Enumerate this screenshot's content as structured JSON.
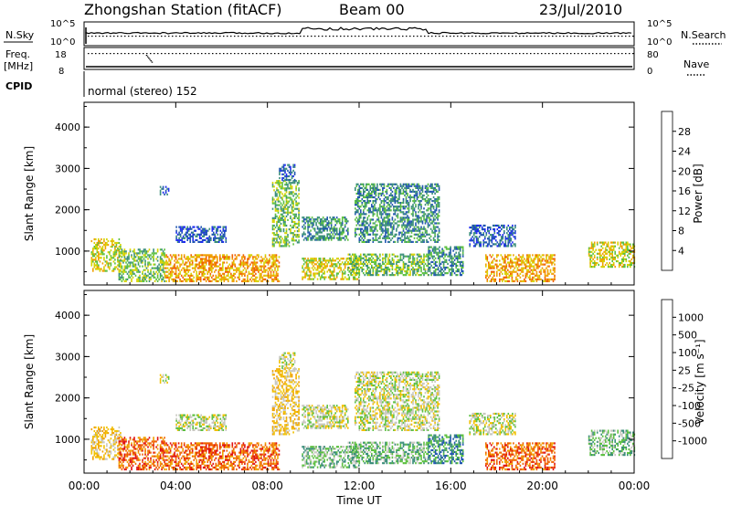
{
  "header": {
    "station": "Zhongshan Station (fitACF)",
    "beam": "Beam 00",
    "date": "23/Jul/2010"
  },
  "status_panels": {
    "nsky_label": "N.Sky",
    "nsearch_label": "N.Search",
    "nsky_ticks": [
      "10^5",
      "10^0"
    ],
    "nsearch_ticks": [
      "10^5",
      "10^0"
    ],
    "freq_label": "Freq.",
    "freq_unit": "[MHz]",
    "freq_ticks": [
      "18",
      "8"
    ],
    "nave_label": "Nave",
    "nave_ticks": [
      "80",
      "0"
    ],
    "cpid_label": "CPID",
    "cpid_value": "normal (stereo) 152"
  },
  "chart_data": [
    {
      "type": "heatmap",
      "panel": "power",
      "ylabel": "Slant Range [km]",
      "yticks": [
        "1000",
        "2000",
        "3000",
        "4000"
      ],
      "ylim": [
        180,
        4600
      ],
      "xlim_hours": [
        0,
        24
      ],
      "colorbar_label": "Power [dB]",
      "colorbar_ticks": [
        "4",
        "8",
        "12",
        "16",
        "20",
        "24",
        "28"
      ],
      "colorbar_colors": [
        "#1e2cf0",
        "#2055b0",
        "#3a8e7a",
        "#5cc040",
        "#d6d200",
        "#f0a000",
        "#f06000",
        "#e01010"
      ],
      "regions": [
        {
          "t0": 0.3,
          "t1": 1.6,
          "r0": 500,
          "r1": 1300,
          "level": 4
        },
        {
          "t0": 1.5,
          "t1": 3.5,
          "r0": 250,
          "r1": 1050,
          "level": 3
        },
        {
          "t0": 3.5,
          "t1": 8.5,
          "r0": 250,
          "r1": 900,
          "level": 5
        },
        {
          "t0": 4.0,
          "t1": 6.2,
          "r0": 1200,
          "r1": 1600,
          "level": 1
        },
        {
          "t0": 3.3,
          "t1": 3.7,
          "r0": 2350,
          "r1": 2550,
          "level": 1
        },
        {
          "t0": 8.2,
          "t1": 9.4,
          "r0": 1100,
          "r1": 2700,
          "level": 3
        },
        {
          "t0": 8.5,
          "t1": 9.2,
          "r0": 2700,
          "r1": 3100,
          "level": 1
        },
        {
          "t0": 9.5,
          "t1": 11.5,
          "r0": 1250,
          "r1": 1800,
          "level": 2
        },
        {
          "t0": 9.5,
          "t1": 12.0,
          "r0": 300,
          "r1": 800,
          "level": 4
        },
        {
          "t0": 11.8,
          "t1": 15.5,
          "r0": 1200,
          "r1": 2600,
          "level": 2
        },
        {
          "t0": 11.5,
          "t1": 15.0,
          "r0": 400,
          "r1": 900,
          "level": 3
        },
        {
          "t0": 15.0,
          "t1": 16.5,
          "r0": 400,
          "r1": 1100,
          "level": 2
        },
        {
          "t0": 16.8,
          "t1": 18.8,
          "r0": 1100,
          "r1": 1600,
          "level": 1
        },
        {
          "t0": 17.5,
          "t1": 20.5,
          "r0": 250,
          "r1": 900,
          "level": 5
        },
        {
          "t0": 22.0,
          "t1": 24.0,
          "r0": 600,
          "r1": 1200,
          "level": 4
        }
      ]
    },
    {
      "type": "heatmap",
      "panel": "velocity",
      "ylabel": "Slant Range [km]",
      "yticks": [
        "1000",
        "2000",
        "3000",
        "4000"
      ],
      "ylim": [
        180,
        4600
      ],
      "xlim_hours": [
        0,
        24
      ],
      "colorbar_label": "Velocity [m s⁻¹]",
      "colorbar_ticks": [
        "1000",
        "500",
        "100",
        "25",
        "-25",
        "-100",
        "-500",
        "-1000"
      ],
      "colorbar_colors": [
        "#1e2cf0",
        "#2055b0",
        "#3a8e7a",
        "#5cc040",
        "#c8c8c0",
        "#f0c000",
        "#f0a000",
        "#f06000",
        "#e01010"
      ],
      "regions": [
        {
          "t0": 0.3,
          "t1": 1.6,
          "r0": 500,
          "r1": 1300,
          "level": 5
        },
        {
          "t0": 1.5,
          "t1": 3.5,
          "r0": 250,
          "r1": 1050,
          "level": 7
        },
        {
          "t0": 3.5,
          "t1": 8.5,
          "r0": 250,
          "r1": 900,
          "level": 7
        },
        {
          "t0": 4.0,
          "t1": 6.2,
          "r0": 1200,
          "r1": 1600,
          "level": 4
        },
        {
          "t0": 3.3,
          "t1": 3.7,
          "r0": 2350,
          "r1": 2550,
          "level": 4
        },
        {
          "t0": 8.2,
          "t1": 9.4,
          "r0": 1100,
          "r1": 2700,
          "level": 5
        },
        {
          "t0": 8.5,
          "t1": 9.2,
          "r0": 2700,
          "r1": 3100,
          "level": 4
        },
        {
          "t0": 9.5,
          "t1": 11.5,
          "r0": 1250,
          "r1": 1800,
          "level": 4
        },
        {
          "t0": 9.5,
          "t1": 12.0,
          "r0": 300,
          "r1": 800,
          "level": 3
        },
        {
          "t0": 11.8,
          "t1": 15.5,
          "r0": 1200,
          "r1": 2600,
          "level": 4
        },
        {
          "t0": 11.5,
          "t1": 15.0,
          "r0": 400,
          "r1": 900,
          "level": 3
        },
        {
          "t0": 15.0,
          "t1": 16.5,
          "r0": 400,
          "r1": 1100,
          "level": 2
        },
        {
          "t0": 16.8,
          "t1": 18.8,
          "r0": 1100,
          "r1": 1600,
          "level": 4
        },
        {
          "t0": 17.5,
          "t1": 20.5,
          "r0": 250,
          "r1": 900,
          "level": 7
        },
        {
          "t0": 22.0,
          "t1": 24.0,
          "r0": 600,
          "r1": 1200,
          "level": 3
        }
      ]
    }
  ],
  "xaxis": {
    "ticks": [
      "00:00",
      "04:00",
      "08:00",
      "12:00",
      "16:00",
      "20:00",
      "00:00"
    ],
    "label": "Time UT"
  }
}
